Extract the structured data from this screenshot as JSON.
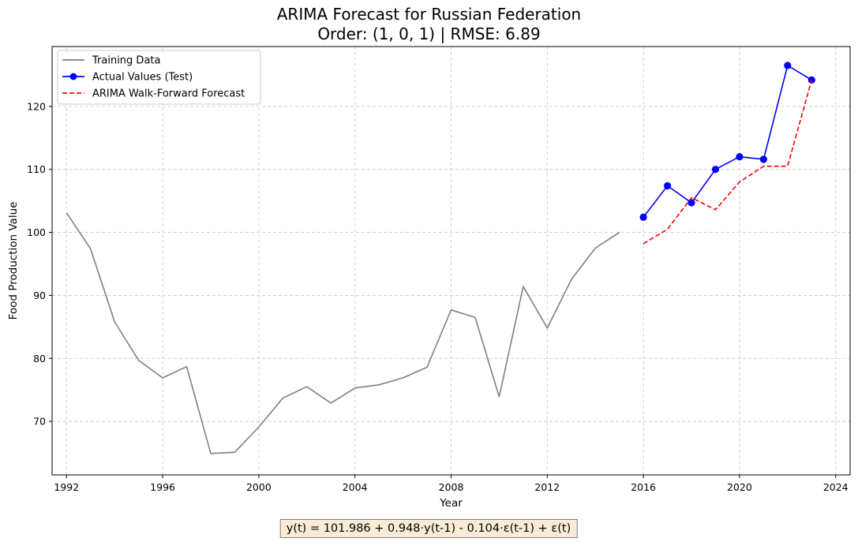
{
  "chart_data": {
    "type": "line",
    "title": "ARIMA Forecast for Russian Federation",
    "subtitle": "Order: (1, 0, 1) | RMSE: 6.89",
    "xlabel": "Year",
    "ylabel": "Food Production Value",
    "xlim": [
      1991.4,
      2024.6
    ],
    "ylim": [
      61.5,
      129.5
    ],
    "xticks": [
      1992,
      1996,
      2000,
      2004,
      2008,
      2012,
      2016,
      2020,
      2024
    ],
    "yticks": [
      70,
      80,
      90,
      100,
      110,
      120
    ],
    "grid": true,
    "legend_position": "top-left",
    "series": [
      {
        "name": "Training Data",
        "color": "#808080",
        "style": "solid",
        "marker": false,
        "x": [
          1992,
          1993,
          1994,
          1995,
          1996,
          1997,
          1998,
          1999,
          2000,
          2001,
          2002,
          2003,
          2004,
          2005,
          2006,
          2007,
          2008,
          2009,
          2010,
          2011,
          2012,
          2013,
          2014,
          2015
        ],
        "values": [
          103.1,
          97.4,
          85.8,
          79.7,
          76.9,
          78.7,
          64.9,
          65.1,
          69.1,
          73.7,
          75.5,
          72.9,
          75.3,
          75.8,
          76.9,
          78.6,
          87.7,
          86.5,
          73.9,
          91.4,
          84.8,
          92.5,
          97.5,
          100.0
        ]
      },
      {
        "name": "Actual Values (Test)",
        "color": "#0000ff",
        "style": "solid",
        "marker": true,
        "x": [
          2016,
          2017,
          2018,
          2019,
          2020,
          2021,
          2022,
          2023
        ],
        "values": [
          102.4,
          107.4,
          104.7,
          110.0,
          112.0,
          111.6,
          126.5,
          124.2
        ]
      },
      {
        "name": "ARIMA Walk-Forward Forecast",
        "color": "#ff0000",
        "style": "dashed",
        "marker": false,
        "x": [
          2016,
          2017,
          2018,
          2019,
          2020,
          2021,
          2022,
          2023
        ],
        "values": [
          98.2,
          100.5,
          105.5,
          103.6,
          108.0,
          110.5,
          110.5,
          124.2
        ]
      }
    ]
  },
  "formula": {
    "text": "y(t) = 101.986 + 0.948·y(t-1) - 0.104·ε(t-1) + ε(t)"
  }
}
